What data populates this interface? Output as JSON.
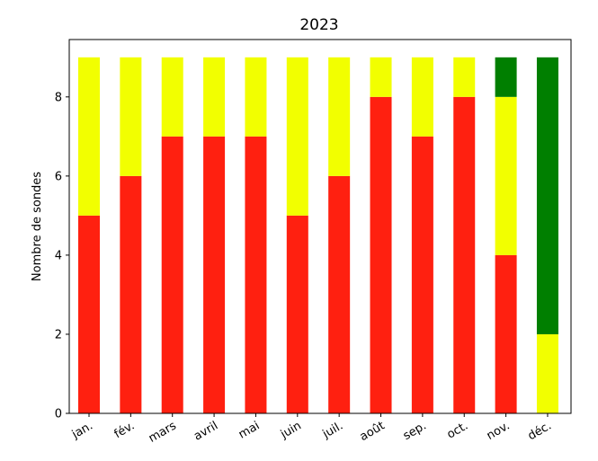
{
  "chart_data": {
    "type": "bar",
    "stacked": true,
    "title": "2023",
    "xlabel": "",
    "ylabel": "Nombre de sondes",
    "ylim": [
      0,
      9.45
    ],
    "yticks": [
      0,
      2,
      4,
      6,
      8
    ],
    "grid": false,
    "legend": "none",
    "categories": [
      "jan.",
      "fév.",
      "mars",
      "avril",
      "mai",
      "juin",
      "juil.",
      "août",
      "sep.",
      "oct.",
      "nov.",
      "déc."
    ],
    "series": [
      {
        "color": "#ff2010",
        "values": [
          5,
          6,
          7,
          7,
          7,
          5,
          6,
          8,
          7,
          8,
          4,
          0
        ]
      },
      {
        "color": "#f2ff00",
        "values": [
          4,
          3,
          2,
          2,
          2,
          4,
          3,
          1,
          2,
          1,
          4,
          2
        ]
      },
      {
        "color": "#007f00",
        "values": [
          0,
          0,
          0,
          0,
          0,
          0,
          0,
          0,
          0,
          0,
          1,
          7
        ]
      }
    ]
  }
}
